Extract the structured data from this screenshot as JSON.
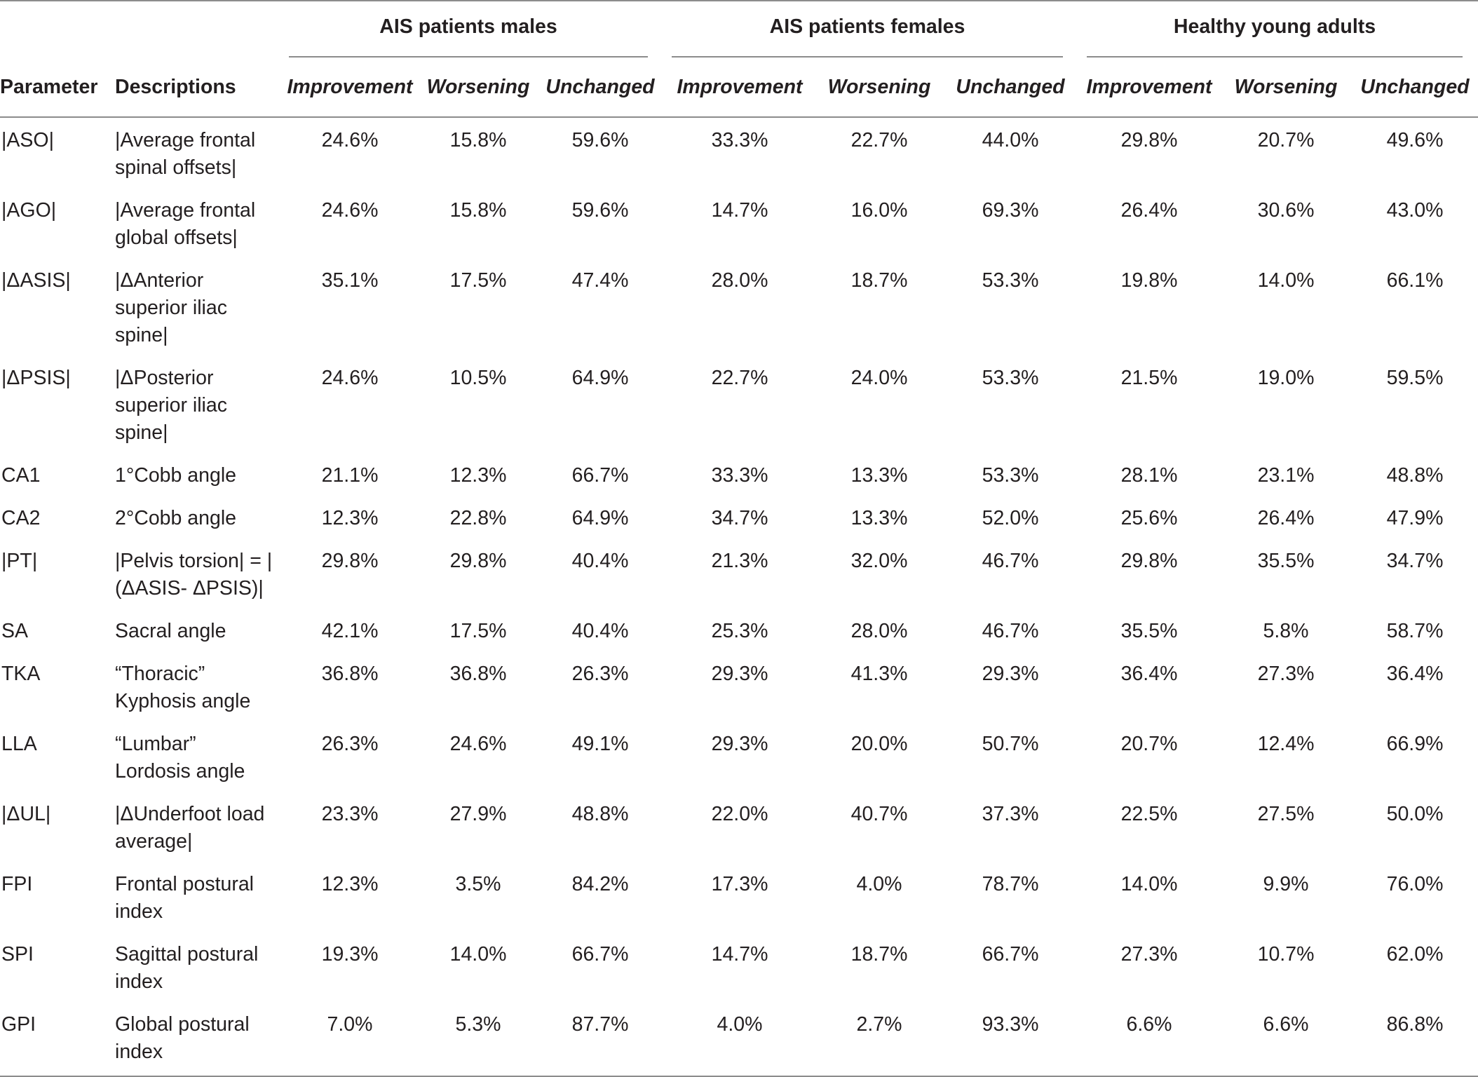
{
  "table": {
    "header": {
      "param_label": "Parameter",
      "desc_label": "Descriptions",
      "groups": [
        "AIS patients males",
        "AIS patients females",
        "Healthy young adults"
      ],
      "subcolumns": [
        "Improvement",
        "Worsening",
        "Unchanged"
      ]
    },
    "rows": [
      {
        "param": "|ASO|",
        "desc": "|Average frontal spinal offsets|",
        "values": [
          "24.6%",
          "15.8%",
          "59.6%",
          "33.3%",
          "22.7%",
          "44.0%",
          "29.8%",
          "20.7%",
          "49.6%"
        ]
      },
      {
        "param": "|AGO|",
        "desc": "|Average frontal global offsets|",
        "values": [
          "24.6%",
          "15.8%",
          "59.6%",
          "14.7%",
          "16.0%",
          "69.3%",
          "26.4%",
          "30.6%",
          "43.0%"
        ]
      },
      {
        "param": "|ΔASIS|",
        "desc": "|ΔAnterior superior iliac spine|",
        "values": [
          "35.1%",
          "17.5%",
          "47.4%",
          "28.0%",
          "18.7%",
          "53.3%",
          "19.8%",
          "14.0%",
          "66.1%"
        ]
      },
      {
        "param": "|ΔPSIS|",
        "desc": "|ΔPosterior superior iliac spine|",
        "values": [
          "24.6%",
          "10.5%",
          "64.9%",
          "22.7%",
          "24.0%",
          "53.3%",
          "21.5%",
          "19.0%",
          "59.5%"
        ]
      },
      {
        "param": "CA1",
        "desc": "1°Cobb angle",
        "values": [
          "21.1%",
          "12.3%",
          "66.7%",
          "33.3%",
          "13.3%",
          "53.3%",
          "28.1%",
          "23.1%",
          "48.8%"
        ]
      },
      {
        "param": "CA2",
        "desc": "2°Cobb angle",
        "values": [
          "12.3%",
          "22.8%",
          "64.9%",
          "34.7%",
          "13.3%",
          "52.0%",
          "25.6%",
          "26.4%",
          "47.9%"
        ]
      },
      {
        "param": "|PT|",
        "desc": "|Pelvis torsion| = |(ΔASIS- ΔPSIS)|",
        "values": [
          "29.8%",
          "29.8%",
          "40.4%",
          "21.3%",
          "32.0%",
          "46.7%",
          "29.8%",
          "35.5%",
          "34.7%"
        ]
      },
      {
        "param": "SA",
        "desc": "Sacral angle",
        "values": [
          "42.1%",
          "17.5%",
          "40.4%",
          "25.3%",
          "28.0%",
          "46.7%",
          "35.5%",
          "5.8%",
          "58.7%"
        ]
      },
      {
        "param": "TKA",
        "desc": "“Thoracic” Kyphosis angle",
        "values": [
          "36.8%",
          "36.8%",
          "26.3%",
          "29.3%",
          "41.3%",
          "29.3%",
          "36.4%",
          "27.3%",
          "36.4%"
        ]
      },
      {
        "param": "LLA",
        "desc": "“Lumbar” Lordosis angle",
        "values": [
          "26.3%",
          "24.6%",
          "49.1%",
          "29.3%",
          "20.0%",
          "50.7%",
          "20.7%",
          "12.4%",
          "66.9%"
        ]
      },
      {
        "param": "|ΔUL|",
        "desc": "|ΔUnderfoot load average|",
        "values": [
          "23.3%",
          "27.9%",
          "48.8%",
          "22.0%",
          "40.7%",
          "37.3%",
          "22.5%",
          "27.5%",
          "50.0%"
        ]
      },
      {
        "param": "FPI",
        "desc": "Frontal postural index",
        "values": [
          "12.3%",
          "3.5%",
          "84.2%",
          "17.3%",
          "4.0%",
          "78.7%",
          "14.0%",
          "9.9%",
          "76.0%"
        ]
      },
      {
        "param": "SPI",
        "desc": "Sagittal postural index",
        "values": [
          "19.3%",
          "14.0%",
          "66.7%",
          "14.7%",
          "18.7%",
          "66.7%",
          "27.3%",
          "10.7%",
          "62.0%"
        ]
      },
      {
        "param": "GPI",
        "desc": "Global postural index",
        "values": [
          "7.0%",
          "5.3%",
          "87.7%",
          "4.0%",
          "2.7%",
          "93.3%",
          "6.6%",
          "6.6%",
          "86.8%"
        ]
      }
    ]
  }
}
